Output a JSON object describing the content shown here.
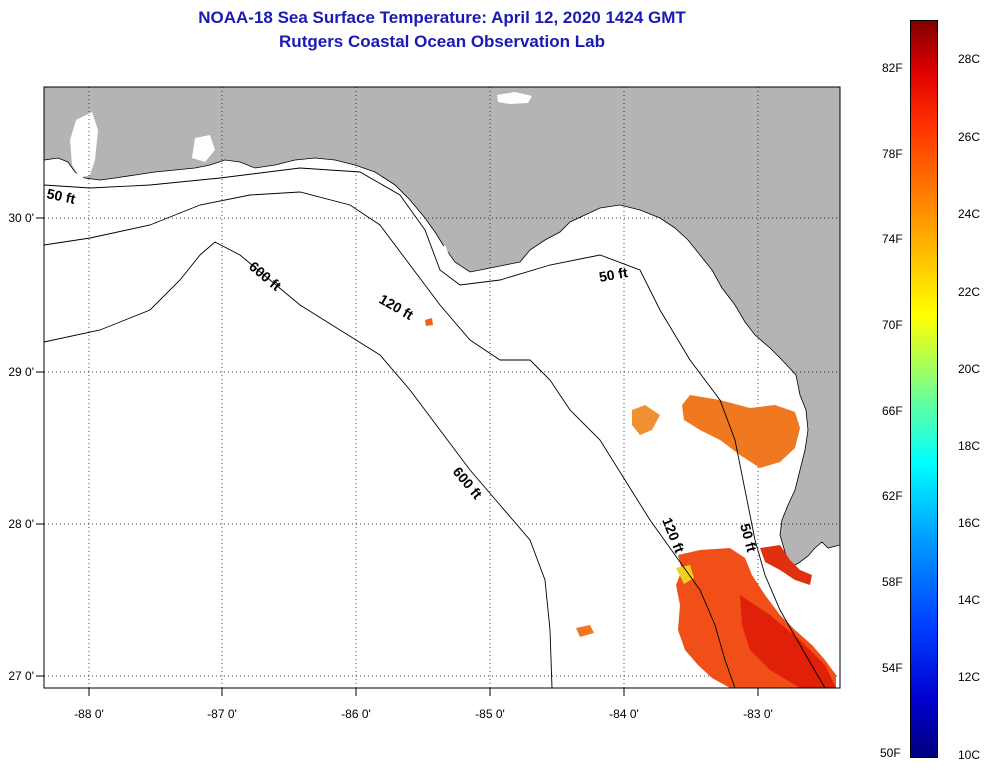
{
  "title": {
    "line1": "NOAA-18 Sea Surface Temperature:  April 12, 2020 1424 GMT",
    "line2": "Rutgers Coastal Ocean Observation Lab"
  },
  "map": {
    "region": "Northeastern Gulf of Mexico / Florida Big Bend",
    "lon_range": [
      -88.35,
      -82.45
    ],
    "lat_range": [
      26.95,
      30.85
    ],
    "x_ticks": [
      {
        "value": -88,
        "label": "-88 0'"
      },
      {
        "value": -87,
        "label": "-87 0'"
      },
      {
        "value": -86,
        "label": "-86 0'"
      },
      {
        "value": -85,
        "label": "-85 0'"
      },
      {
        "value": -84,
        "label": "-84 0'"
      },
      {
        "value": -83,
        "label": "-83 0'"
      }
    ],
    "y_ticks": [
      {
        "value": 30,
        "label": "30 0'"
      },
      {
        "value": 29,
        "label": "29 0'"
      },
      {
        "value": 28,
        "label": "28 0'"
      },
      {
        "value": 27,
        "label": "27 0'"
      }
    ],
    "grid": true,
    "land_color": "#b4b4b4",
    "contour_labels": {
      "c50_west": "50 ft",
      "c50_east": "50 ft",
      "c50_south": "50 ft",
      "c120_north": "120 ft",
      "c120_south": "120 ft",
      "c600_north": "600 ft",
      "c600_south": "600 ft"
    }
  },
  "colorbar": {
    "min_c": 10,
    "max_c": 29,
    "fahrenheit_labels": [
      "82F",
      "78F",
      "74F",
      "70F",
      "66F",
      "62F",
      "58F",
      "54F",
      "50F"
    ],
    "celsius_labels": [
      "28C",
      "26C",
      "24C",
      "22C",
      "20C",
      "18C",
      "16C",
      "14C",
      "12C",
      "10C"
    ]
  }
}
